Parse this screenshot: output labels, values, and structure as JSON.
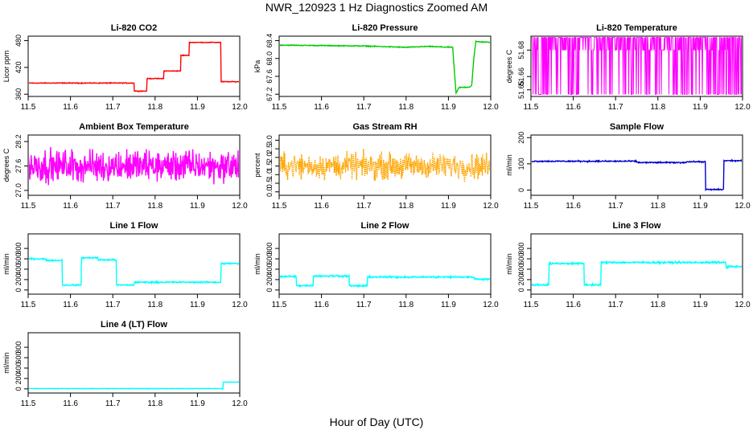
{
  "title": "NWR_120923  1 Hz Diagnostics Zoomed AM",
  "xlabel": "Hour of Day (UTC)",
  "chart_data": [
    {
      "type": "line",
      "title": "Li-820 CO2",
      "ylabel": "Licor ppm",
      "color": "#ff0000",
      "xlim": [
        11.5,
        12.0
      ],
      "ylim": [
        355,
        490
      ],
      "xticks": [
        "11.5",
        "11.6",
        "11.7",
        "11.8",
        "11.9",
        "12.0"
      ],
      "yticks": [
        "360",
        "420",
        "480"
      ],
      "noise": 0.7,
      "series": [
        {
          "x": [
            11.5,
            11.75,
            11.75,
            11.78,
            11.78,
            11.82,
            11.82,
            11.86,
            11.86,
            11.88,
            11.88,
            11.955,
            11.955,
            12.0
          ],
          "y": [
            385,
            385,
            367,
            367,
            395,
            395,
            412,
            412,
            447,
            447,
            476,
            476,
            388,
            388
          ]
        }
      ]
    },
    {
      "type": "line",
      "title": "Li-820 Pressure",
      "ylabel": "kPa",
      "color": "#00cc00",
      "xlim": [
        11.5,
        12.0
      ],
      "ylim": [
        67.15,
        68.5
      ],
      "xticks": [
        "11.5",
        "11.6",
        "11.7",
        "11.8",
        "11.9",
        "12.0"
      ],
      "yticks": [
        "67.2",
        "67.6",
        "68.0",
        "68.4"
      ],
      "noise": 0.008,
      "series": [
        {
          "x": [
            11.5,
            11.7,
            11.8,
            11.85,
            11.91,
            11.918,
            11.925,
            11.95,
            11.955,
            11.96,
            11.965,
            12.0
          ],
          "y": [
            68.3,
            68.28,
            68.25,
            68.27,
            68.25,
            67.22,
            67.35,
            67.36,
            67.4,
            68.0,
            68.38,
            68.36
          ]
        }
      ]
    },
    {
      "type": "line",
      "title": "Li-820 Temperature",
      "ylabel": "degrees C",
      "color": "#ff00ff",
      "xlim": [
        11.5,
        12.0
      ],
      "ylim": [
        51.645,
        51.6905
      ],
      "xticks": [
        "11.5",
        "11.6",
        "11.7",
        "11.8",
        "11.9",
        "12.0"
      ],
      "yticks": [
        "51.65",
        "51.66",
        "51.68"
      ],
      "flip": [
        51.6465,
        51.6895
      ],
      "series": [
        {
          "x": [
            11.5,
            12.0
          ],
          "y": [
            51.68,
            51.68
          ]
        }
      ]
    },
    {
      "type": "line",
      "title": "Ambient Box Temperature",
      "ylabel": "degrees C",
      "color": "#ff00ff",
      "xlim": [
        11.5,
        12.0
      ],
      "ylim": [
        26.88,
        28.36
      ],
      "xticks": [
        "11.5",
        "11.6",
        "11.7",
        "11.8",
        "11.9",
        "12.0"
      ],
      "yticks": [
        "27.0",
        "27.6",
        "28.2"
      ],
      "noise": 0.32,
      "series": [
        {
          "x": [
            11.5,
            12.0
          ],
          "y": [
            27.6,
            27.6
          ]
        }
      ]
    },
    {
      "type": "line",
      "title": "Gas Stream RH",
      "ylabel": "percent",
      "color": "#ffa500",
      "xlim": [
        11.5,
        12.0
      ],
      "ylim": [
        -0.2,
        3.3
      ],
      "xticks": [
        "11.5",
        "11.6",
        "11.7",
        "11.8",
        "11.9",
        "12.0"
      ],
      "yticks": [
        "0.0",
        "0.5",
        "1.0",
        "1.5",
        "2.0",
        "2.5",
        "3.0"
      ],
      "noise": 0.6,
      "dotted": true,
      "series": [
        {
          "x": [
            11.5,
            12.0
          ],
          "y": [
            1.5,
            1.5
          ]
        }
      ]
    },
    {
      "type": "line",
      "title": "Sample Flow",
      "ylabel": "ml/min",
      "color": "#0000cc",
      "xlim": [
        11.5,
        12.0
      ],
      "ylim": [
        -20,
        210
      ],
      "xticks": [
        "11.5",
        "11.6",
        "11.7",
        "11.8",
        "11.9",
        "12.0"
      ],
      "yticks": [
        "0",
        "100",
        "200"
      ],
      "noise": 2,
      "series": [
        {
          "x": [
            11.5,
            11.75,
            11.75,
            11.865,
            11.865,
            11.912,
            11.912,
            11.955,
            11.955,
            12.0
          ],
          "y": [
            110,
            110,
            105,
            105,
            108,
            108,
            2,
            2,
            112,
            112
          ]
        }
      ]
    },
    {
      "type": "line",
      "title": "Line 1 Flow",
      "ylabel": "ml/min",
      "color": "#00ffff",
      "xlim": [
        11.5,
        12.0
      ],
      "ylim": [
        -80,
        1080
      ],
      "xticks": [
        "11.5",
        "11.6",
        "11.7",
        "11.8",
        "11.9",
        "12.0"
      ],
      "yticks": [
        "0",
        "200",
        "400",
        "600",
        "800"
      ],
      "noise": 12,
      "series": [
        {
          "x": [
            11.5,
            11.54,
            11.54,
            11.58,
            11.58,
            11.625,
            11.625,
            11.665,
            11.665,
            11.708,
            11.708,
            11.75,
            11.75,
            11.955,
            11.955,
            12.0
          ],
          "y": [
            600,
            600,
            570,
            570,
            95,
            95,
            620,
            620,
            580,
            580,
            95,
            95,
            150,
            150,
            510,
            510
          ]
        }
      ]
    },
    {
      "type": "line",
      "title": "Line 2 Flow",
      "ylabel": "ml/min",
      "color": "#00ffff",
      "xlim": [
        11.5,
        12.0
      ],
      "ylim": [
        -80,
        1080
      ],
      "xticks": [
        "11.5",
        "11.6",
        "11.7",
        "11.8",
        "11.9",
        "12.0"
      ],
      "yticks": [
        "0",
        "200",
        "400",
        "600",
        "800"
      ],
      "noise": 14,
      "series": [
        {
          "x": [
            11.5,
            11.54,
            11.54,
            11.58,
            11.58,
            11.665,
            11.665,
            11.708,
            11.708,
            11.96,
            11.96,
            12.0
          ],
          "y": [
            260,
            260,
            85,
            85,
            270,
            270,
            80,
            80,
            250,
            250,
            210,
            210
          ]
        }
      ]
    },
    {
      "type": "line",
      "title": "Line 3 Flow",
      "ylabel": "ml/min",
      "color": "#00ffff",
      "xlim": [
        11.5,
        12.0
      ],
      "ylim": [
        -80,
        1080
      ],
      "xticks": [
        "11.5",
        "11.6",
        "11.7",
        "11.8",
        "11.9",
        "12.0"
      ],
      "yticks": [
        "0",
        "200",
        "400",
        "600",
        "800"
      ],
      "noise": 14,
      "series": [
        {
          "x": [
            11.5,
            11.542,
            11.542,
            11.625,
            11.625,
            11.665,
            11.665,
            11.96,
            11.96,
            12.0
          ],
          "y": [
            100,
            100,
            510,
            510,
            100,
            100,
            530,
            530,
            450,
            450
          ]
        }
      ]
    },
    {
      "type": "line",
      "title": "Line 4 (LT) Flow",
      "ylabel": "ml/min",
      "color": "#00ffff",
      "xlim": [
        11.5,
        12.0
      ],
      "ylim": [
        -80,
        1080
      ],
      "xticks": [
        "11.5",
        "11.6",
        "11.7",
        "11.8",
        "11.9",
        "12.0"
      ],
      "yticks": [
        "0",
        "200",
        "400",
        "600",
        "800"
      ],
      "noise": 4,
      "series": [
        {
          "x": [
            11.5,
            11.96,
            11.96,
            12.0
          ],
          "y": [
            5,
            5,
            130,
            130
          ]
        }
      ]
    }
  ]
}
